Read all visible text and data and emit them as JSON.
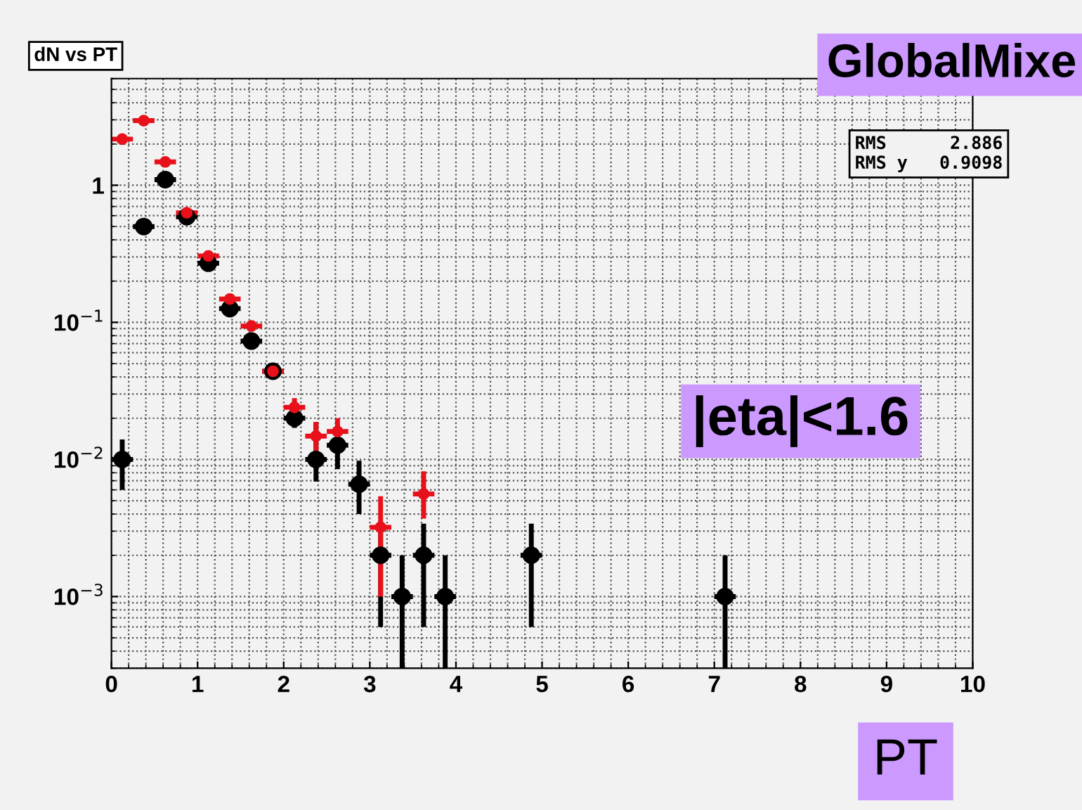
{
  "chart_data": {
    "type": "scatter",
    "title": "dN vs PT",
    "xlabel": "PT",
    "annotations": [
      "GlobalMixe",
      "|eta|<1.6",
      "RMS      2.886",
      "RMS y   0.9098"
    ],
    "series": [
      {
        "color": "#000000",
        "x": [
          0.125,
          0.375,
          0.625,
          0.875,
          1.125,
          1.375,
          1.625,
          1.875,
          2.125,
          2.375,
          2.625,
          2.875,
          3.125,
          3.375,
          3.625,
          3.875,
          4.875,
          7.125
        ],
        "values": [
          0.01,
          0.5,
          1.1,
          0.59,
          0.27,
          0.126,
          0.073,
          0.044,
          0.02,
          0.01,
          0.0127,
          0.0066,
          0.002,
          0.001,
          0.002,
          0.001,
          0.002,
          0.001
        ],
        "errors": [
          0.004,
          null,
          null,
          null,
          null,
          null,
          null,
          null,
          0.003,
          [
            0.0069,
            0.0187
          ],
          0.0042,
          [
            0.004,
            0.0098
          ],
          0.0014,
          [
            0.0003,
            0.002
          ],
          0.0014,
          [
            0.0003,
            0.002
          ],
          0.0014,
          [
            0.0003,
            0.002
          ]
        ],
        "xerrors": [
          0.125,
          0.125,
          0.125,
          0.125,
          0.125,
          0.125,
          0.125,
          0.125,
          0.125,
          0.125,
          0.125,
          0.125,
          0.125,
          0.125,
          0.125,
          0.125,
          0.125,
          0.125
        ]
      },
      {
        "color": "#e8101a",
        "x": [
          0.125,
          0.375,
          0.625,
          0.875,
          1.125,
          1.375,
          1.625,
          1.875,
          2.125,
          2.375,
          2.625,
          3.125,
          3.625
        ],
        "values": [
          2.17,
          2.96,
          1.48,
          0.63,
          0.305,
          0.148,
          0.094,
          0.044,
          0.024,
          0.0148,
          0.016,
          0.0032,
          0.0056
        ],
        "errors": [
          null,
          null,
          null,
          null,
          null,
          0.01,
          0.008,
          null,
          0.004,
          0.004,
          0.004,
          0.0022,
          [
            0.0037,
            0.0082
          ]
        ],
        "xerrors": [
          0.125,
          0.125,
          0.125,
          0.125,
          0.125,
          0.125,
          0.125,
          0.125,
          0.125,
          0.125,
          0.125,
          0.125,
          0.125
        ]
      }
    ],
    "xlim": [
      0,
      10
    ],
    "xticks": [
      0,
      1,
      2,
      3,
      4,
      5,
      6,
      7,
      8,
      9,
      10
    ],
    "ylim": [
      0.0003,
      6
    ],
    "log": true,
    "yticks": [
      {
        "value": 0.001,
        "label": "10$^{−3}$"
      },
      {
        "value": 0.01,
        "label": "10$^{−2}$"
      },
      {
        "value": 0.1,
        "label": "10$^{−1}$"
      },
      1
    ],
    "grid": true,
    "marker": "circle"
  }
}
